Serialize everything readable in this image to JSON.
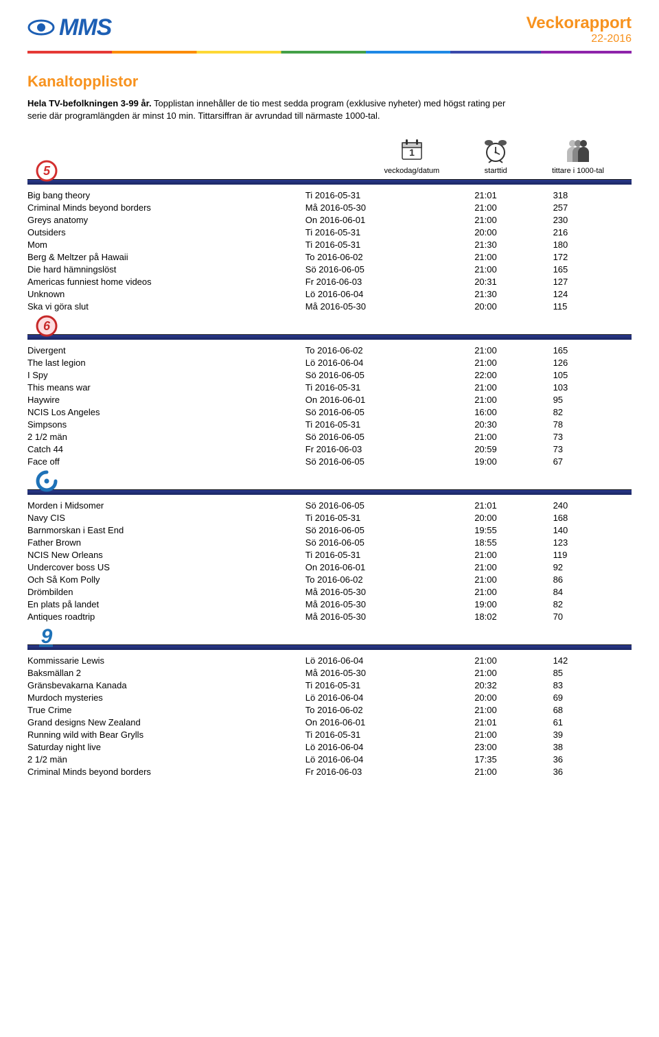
{
  "header": {
    "logo_text": "MMS",
    "report_title": "Veckorapport",
    "report_sub": "22-2016",
    "logo_color": "#1d5fb4",
    "accent_color": "#f7921e"
  },
  "page_title": "Kanaltopplistor",
  "intro": {
    "bold": "Hela TV-befolkningen 3-99 år.",
    "rest": " Topplistan innehåller de tio mest sedda program (exklusive nyheter) med högst rating per serie där programlängden är minst 10 min. Tittarsiffran är avrundad till närmaste 1000-tal."
  },
  "legend": {
    "date": "veckodag/datum",
    "time": "starttid",
    "viewers": "tittare i 1000-tal"
  },
  "channels": [
    {
      "id": "kanal5",
      "icon": {
        "type": "circle-digit",
        "digit": "5",
        "stroke": "#d32f2f",
        "fill": "#ffffff"
      },
      "programs": [
        {
          "name": "Big bang theory",
          "date": "Ti 2016-05-31",
          "time": "21:01",
          "viewers": "318"
        },
        {
          "name": "Criminal Minds beyond borders",
          "date": "Må 2016-05-30",
          "time": "21:00",
          "viewers": "257"
        },
        {
          "name": "Greys anatomy",
          "date": "On 2016-06-01",
          "time": "21:00",
          "viewers": "230"
        },
        {
          "name": "Outsiders",
          "date": "Ti 2016-05-31",
          "time": "20:00",
          "viewers": "216"
        },
        {
          "name": "Mom",
          "date": "Ti 2016-05-31",
          "time": "21:30",
          "viewers": "180"
        },
        {
          "name": "Berg & Meltzer på Hawaii",
          "date": "To 2016-06-02",
          "time": "21:00",
          "viewers": "172"
        },
        {
          "name": "Die hard hämningslöst",
          "date": "Sö 2016-06-05",
          "time": "21:00",
          "viewers": "165"
        },
        {
          "name": "Americas funniest home videos",
          "date": "Fr 2016-06-03",
          "time": "20:31",
          "viewers": "127"
        },
        {
          "name": "Unknown",
          "date": "Lö 2016-06-04",
          "time": "21:30",
          "viewers": "124"
        },
        {
          "name": "Ska vi göra slut",
          "date": "Må 2016-05-30",
          "time": "20:00",
          "viewers": "115"
        }
      ]
    },
    {
      "id": "tv6",
      "icon": {
        "type": "circle-digit",
        "digit": "6",
        "stroke": "#c62828",
        "fill": "#fddde0"
      },
      "programs": [
        {
          "name": "Divergent",
          "date": "To 2016-06-02",
          "time": "21:00",
          "viewers": "165"
        },
        {
          "name": "The last legion",
          "date": "Lö 2016-06-04",
          "time": "21:00",
          "viewers": "126"
        },
        {
          "name": "I Spy",
          "date": "Sö 2016-06-05",
          "time": "22:00",
          "viewers": "105"
        },
        {
          "name": "This means war",
          "date": "Ti 2016-05-31",
          "time": "21:00",
          "viewers": "103"
        },
        {
          "name": "Haywire",
          "date": "On 2016-06-01",
          "time": "21:00",
          "viewers": "95"
        },
        {
          "name": "NCIS Los Angeles",
          "date": "Sö 2016-06-05",
          "time": "16:00",
          "viewers": "82"
        },
        {
          "name": "Simpsons",
          "date": "Ti 2016-05-31",
          "time": "20:30",
          "viewers": "78"
        },
        {
          "name": "2 1/2 män",
          "date": "Sö 2016-06-05",
          "time": "21:00",
          "viewers": "73"
        },
        {
          "name": "Catch 44",
          "date": "Fr 2016-06-03",
          "time": "20:59",
          "viewers": "73"
        },
        {
          "name": "Face off",
          "date": "Sö 2016-06-05",
          "time": "19:00",
          "viewers": "67"
        }
      ]
    },
    {
      "id": "sjuan",
      "icon": {
        "type": "open-ring",
        "stroke": "#1e72b8"
      },
      "programs": [
        {
          "name": "Morden i Midsomer",
          "date": "Sö 2016-06-05",
          "time": "21:01",
          "viewers": "240"
        },
        {
          "name": "Navy CIS",
          "date": "Ti 2016-05-31",
          "time": "20:00",
          "viewers": "168"
        },
        {
          "name": "Barnmorskan i East End",
          "date": "Sö 2016-06-05",
          "time": "19:55",
          "viewers": "140"
        },
        {
          "name": "Father Brown",
          "date": "Sö 2016-06-05",
          "time": "18:55",
          "viewers": "123"
        },
        {
          "name": "NCIS New Orleans",
          "date": "Ti 2016-05-31",
          "time": "21:00",
          "viewers": "119"
        },
        {
          "name": "Undercover boss US",
          "date": "On 2016-06-01",
          "time": "21:00",
          "viewers": "92"
        },
        {
          "name": "Och Så Kom Polly",
          "date": "To 2016-06-02",
          "time": "21:00",
          "viewers": "86"
        },
        {
          "name": "Drömbilden",
          "date": "Må 2016-05-30",
          "time": "21:00",
          "viewers": "84"
        },
        {
          "name": "En plats på landet",
          "date": "Må 2016-05-30",
          "time": "19:00",
          "viewers": "82"
        },
        {
          "name": "Antiques roadtrip",
          "date": "Må 2016-05-30",
          "time": "18:02",
          "viewers": "70"
        }
      ]
    },
    {
      "id": "kanal9",
      "icon": {
        "type": "digit-plain",
        "digit": "9",
        "color": "#1e72b8"
      },
      "programs": [
        {
          "name": "Kommissarie Lewis",
          "date": "Lö 2016-06-04",
          "time": "21:00",
          "viewers": "142"
        },
        {
          "name": "Baksmällan 2",
          "date": "Må 2016-05-30",
          "time": "21:00",
          "viewers": "85"
        },
        {
          "name": "Gränsbevakarna Kanada",
          "date": "Ti 2016-05-31",
          "time": "20:32",
          "viewers": "83"
        },
        {
          "name": "Murdoch mysteries",
          "date": "Lö 2016-06-04",
          "time": "20:00",
          "viewers": "69"
        },
        {
          "name": "True Crime",
          "date": "To 2016-06-02",
          "time": "21:00",
          "viewers": "68"
        },
        {
          "name": "Grand designs New Zealand",
          "date": "On 2016-06-01",
          "time": "21:01",
          "viewers": "61"
        },
        {
          "name": "Running wild with Bear Grylls",
          "date": "Ti 2016-05-31",
          "time": "21:00",
          "viewers": "39"
        },
        {
          "name": "Saturday night live",
          "date": "Lö 2016-06-04",
          "time": "23:00",
          "viewers": "38"
        },
        {
          "name": "2 1/2 män",
          "date": "Lö 2016-06-04",
          "time": "17:35",
          "viewers": "36"
        },
        {
          "name": "Criminal Minds beyond borders",
          "date": "Fr 2016-06-03",
          "time": "21:00",
          "viewers": "36"
        }
      ]
    }
  ]
}
